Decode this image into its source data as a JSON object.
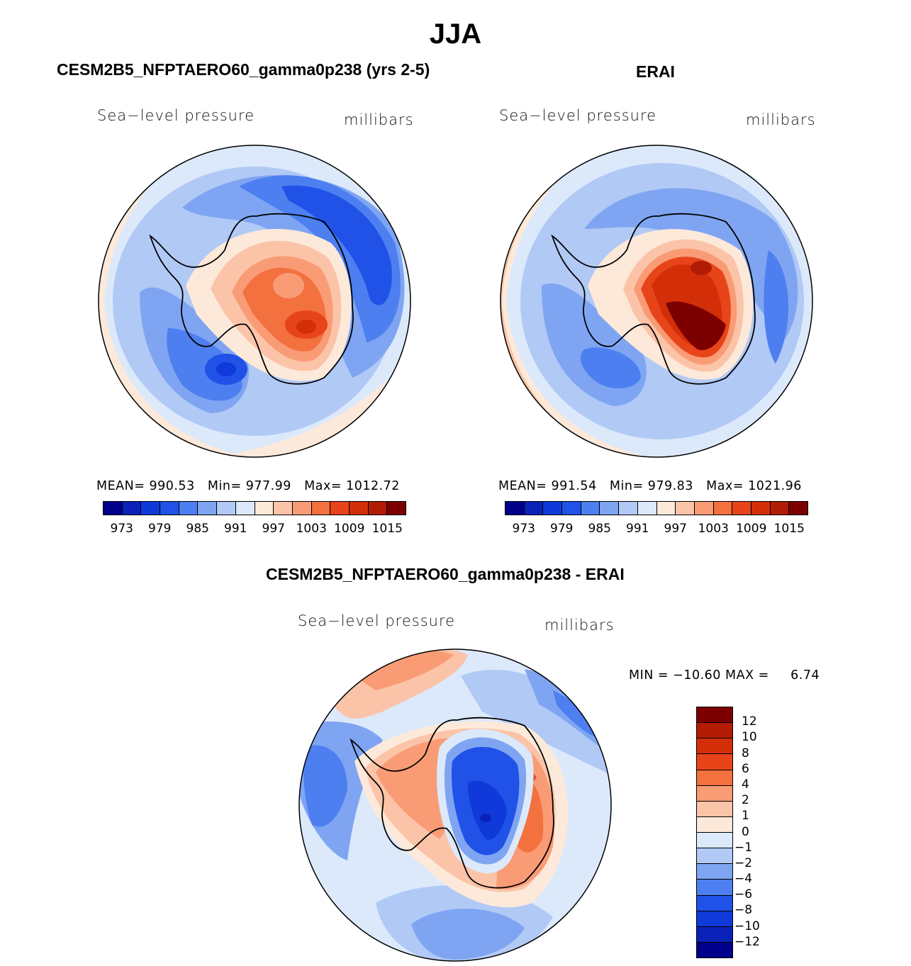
{
  "title": "JJA",
  "palette": {
    "abs": [
      "#00008b",
      "#0a22b8",
      "#0f3ad9",
      "#2052e8",
      "#4d7ff0",
      "#7fa5f2",
      "#b1c9f5",
      "#dce9fb",
      "#fde9da",
      "#fbc4a8",
      "#f99c76",
      "#f3703f",
      "#e8441a",
      "#d22f09",
      "#b21c05",
      "#7d0000"
    ],
    "diff": [
      "#7d0000",
      "#b21c05",
      "#d22f09",
      "#e8441a",
      "#f3703f",
      "#f99c76",
      "#fbc4a8",
      "#fde9da",
      "#dce9fb",
      "#b1c9f5",
      "#7fa5f2",
      "#4d7ff0",
      "#2052e8",
      "#0f3ad9",
      "#0a22b8",
      "#00008b"
    ]
  },
  "panels": {
    "model": {
      "title": "CESM2B5_NFPTAERO60_gamma0p238 (yrs 2-5)",
      "variable": "Sea−level pressure",
      "units": "millibars",
      "mean_label": "MEAN=",
      "mean": "990.53",
      "min_label": "Min=",
      "min": "977.99",
      "max_label": "Max=",
      "max": "1012.72",
      "ticks": [
        "973",
        "979",
        "985",
        "991",
        "997",
        "1003",
        "1009",
        "1015"
      ]
    },
    "obs": {
      "title": "ERAI",
      "variable": "Sea−level pressure",
      "units": "millibars",
      "mean_label": "MEAN=",
      "mean": "991.54",
      "min_label": "Min=",
      "min": "979.83",
      "max_label": "Max=",
      "max": "1021.96",
      "ticks": [
        "973",
        "979",
        "985",
        "991",
        "997",
        "1003",
        "1009",
        "1015"
      ]
    },
    "diff": {
      "title": "CESM2B5_NFPTAERO60_gamma0p238 - ERAI",
      "variable": "Sea−level pressure",
      "units": "millibars",
      "min_label": "MIN =",
      "min": "−10.60",
      "max_label": "MAX =",
      "max": "6.74",
      "ticks": [
        "12",
        "10",
        "8",
        "6",
        "4",
        "2",
        "1",
        "0",
        "−1",
        "−2",
        "−4",
        "−6",
        "−8",
        "−10",
        "−12"
      ]
    }
  }
}
